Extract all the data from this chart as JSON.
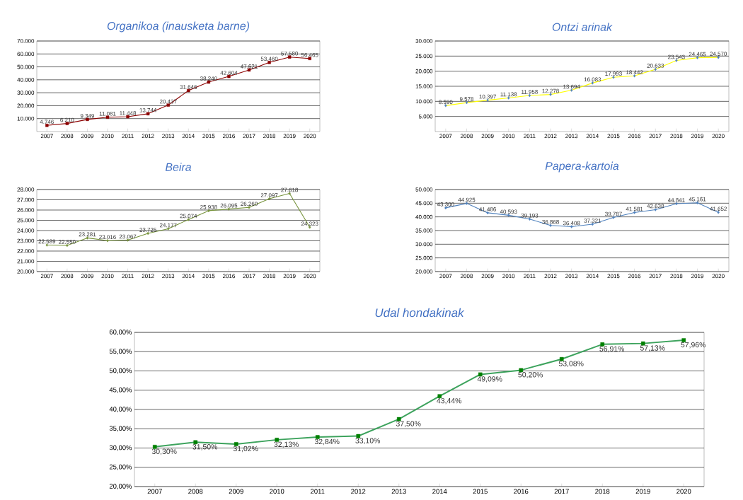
{
  "chart_data": [
    {
      "type": "line",
      "title": "Organikoa (inausketa barne)",
      "categories": [
        "2007",
        "2008",
        "2009",
        "2010",
        "2011",
        "2012",
        "2013",
        "2014",
        "2015",
        "2016",
        "2017",
        "2018",
        "2019",
        "2020"
      ],
      "series": [
        {
          "color": "#8b0000",
          "values": [
            4746,
            6210,
            9349,
            11081,
            11448,
            13744,
            20437,
            31646,
            38240,
            42604,
            47621,
            53460,
            57580,
            56465
          ],
          "value_labels": [
            "4.746",
            "6.210",
            "9.349",
            "11.081",
            "11.448",
            "13.744",
            "20.437",
            "31.646",
            "38.240",
            "42.604",
            "47.621",
            "53.460",
            "57.580",
            "56.465"
          ]
        }
      ],
      "ylim": [
        0,
        70000
      ],
      "yticks": [
        {
          "value": 10000,
          "label": "10.000"
        },
        {
          "value": 20000,
          "label": "20.000"
        },
        {
          "value": 30000,
          "label": "30.000"
        },
        {
          "value": 40000,
          "label": "40.000"
        },
        {
          "value": 50000,
          "label": "50.000"
        },
        {
          "value": 60000,
          "label": "60.000"
        },
        {
          "value": 70000,
          "label": "70.000"
        }
      ],
      "grid": "y",
      "marker": "square"
    },
    {
      "type": "line",
      "title": "Ontzi arinak",
      "categories": [
        "2007",
        "2008",
        "2009",
        "2010",
        "2011",
        "2012",
        "2013",
        "2014",
        "2015",
        "2016",
        "2017",
        "2018",
        "2019",
        "2020"
      ],
      "series": [
        {
          "color": "#ffff00",
          "values": [
            8590,
            9578,
            10397,
            11138,
            11958,
            12278,
            13694,
            16083,
            17993,
            18442,
            20633,
            23543,
            24465,
            24570
          ],
          "value_labels": [
            "8.590",
            "9.578",
            "10.397",
            "11.138",
            "11.958",
            "12.278",
            "13.694",
            "16.083",
            "17.993",
            "18.442",
            "20.633",
            "23.543",
            "24.465",
            "24.570"
          ]
        }
      ],
      "colors": [
        "#4f81bd",
        "#4f81bd",
        "#4f81bd",
        "#4f81bd",
        "#4f81bd",
        "#4f81bd",
        "#4f81bd",
        "#4f81bd",
        "#4f81bd",
        "#4f81bd",
        "#4f81bd",
        "#4f81bd",
        "#4f81bd",
        "#4f81bd"
      ],
      "ylim": [
        0,
        30000
      ],
      "yticks": [
        {
          "value": 5000,
          "label": "5.000"
        },
        {
          "value": 10000,
          "label": "10.000"
        },
        {
          "value": 15000,
          "label": "15.000"
        },
        {
          "value": 20000,
          "label": "20.000"
        },
        {
          "value": 25000,
          "label": "25.000"
        },
        {
          "value": 30000,
          "label": "30.000"
        }
      ],
      "grid": "y",
      "marker": "diamond"
    },
    {
      "type": "line",
      "title": "Beira",
      "categories": [
        "2007",
        "2008",
        "2009",
        "2010",
        "2011",
        "2012",
        "2013",
        "2014",
        "2015",
        "2016",
        "2017",
        "2018",
        "2019",
        "2020"
      ],
      "series": [
        {
          "color": "#77933c",
          "values": [
            22589,
            22550,
            23281,
            23016,
            23067,
            23725,
            24177,
            25074,
            25938,
            26095,
            26260,
            27097,
            27618,
            24323
          ],
          "value_labels": [
            "22.589",
            "22.550",
            "23.281",
            "23.016",
            "23.067",
            "23.725",
            "24.177",
            "25.074",
            "25.938",
            "26.095",
            "26.260",
            "27.097",
            "27.618",
            "24.323"
          ]
        }
      ],
      "ylim": [
        20000,
        28000
      ],
      "yticks": [
        {
          "value": 20000,
          "label": "20.000"
        },
        {
          "value": 21000,
          "label": "21.000"
        },
        {
          "value": 22000,
          "label": "22.000"
        },
        {
          "value": 23000,
          "label": "23.000"
        },
        {
          "value": 24000,
          "label": "24.000"
        },
        {
          "value": 25000,
          "label": "25.000"
        },
        {
          "value": 26000,
          "label": "26.000"
        },
        {
          "value": 27000,
          "label": "27.000"
        },
        {
          "value": 28000,
          "label": "28.000"
        }
      ],
      "grid": "y",
      "marker": "diamond"
    },
    {
      "type": "line",
      "title": "Papera-kartoia",
      "categories": [
        "2007",
        "2008",
        "2009",
        "2010",
        "2011",
        "2012",
        "2013",
        "2014",
        "2015",
        "2016",
        "2017",
        "2018",
        "2019",
        "2020"
      ],
      "series": [
        {
          "color": "#4f81bd",
          "values": [
            43300,
            44925,
            41486,
            40593,
            39193,
            36868,
            36408,
            37321,
            39787,
            41581,
            42638,
            44841,
            45161,
            41652
          ],
          "value_labels": [
            "43.300",
            "44.925",
            "41.486",
            "40.593",
            "39.193",
            "36.868",
            "36.408",
            "37.321",
            "39.787",
            "41.581",
            "42.638",
            "44.841",
            "45.161",
            "41.652"
          ]
        }
      ],
      "ylim": [
        20000,
        50000
      ],
      "yticks": [
        {
          "value": 20000,
          "label": "20.000"
        },
        {
          "value": 25000,
          "label": "25.000"
        },
        {
          "value": 30000,
          "label": "30.000"
        },
        {
          "value": 35000,
          "label": "35.000"
        },
        {
          "value": 40000,
          "label": "40.000"
        },
        {
          "value": 45000,
          "label": "45.000"
        },
        {
          "value": 50000,
          "label": "50.000"
        }
      ],
      "grid": "y",
      "marker": "diamond"
    },
    {
      "type": "line",
      "title": "Udal hondakinak",
      "categories": [
        "2007",
        "2008",
        "2009",
        "2010",
        "2011",
        "2012",
        "2013",
        "2014",
        "2015",
        "2016",
        "2017",
        "2018",
        "2019",
        "2020"
      ],
      "series": [
        {
          "color": "#3da35d",
          "values": [
            30.3,
            31.5,
            31.02,
            32.13,
            32.84,
            33.1,
            37.5,
            43.44,
            49.09,
            50.2,
            53.08,
            56.91,
            57.13,
            57.96
          ],
          "value_labels": [
            "30,30%",
            "31,50%",
            "31,02%",
            "32,13%",
            "32,84%",
            "33,10%",
            "37,50%",
            "43,44%",
            "49,09%",
            "50,20%",
            "53,08%",
            "56,91%",
            "57,13%",
            "57,96%"
          ]
        }
      ],
      "colors": [
        "#008000",
        "#008000",
        "#008000",
        "#008000",
        "#008000",
        "#008000",
        "#008000",
        "#008000",
        "#008000",
        "#008000",
        "#008000",
        "#008000",
        "#008000",
        "#008000"
      ],
      "ylim": [
        20,
        60
      ],
      "yticks": [
        {
          "value": 20,
          "label": "20,00%"
        },
        {
          "value": 25,
          "label": "25,00%"
        },
        {
          "value": 30,
          "label": "30,00%"
        },
        {
          "value": 35,
          "label": "35,00%"
        },
        {
          "value": 40,
          "label": "40,00%"
        },
        {
          "value": 45,
          "label": "45,00%"
        },
        {
          "value": 50,
          "label": "50,00%"
        },
        {
          "value": 55,
          "label": "55,00%"
        },
        {
          "value": 60,
          "label": "60,00%"
        }
      ],
      "grid": "y",
      "marker": "square"
    }
  ]
}
